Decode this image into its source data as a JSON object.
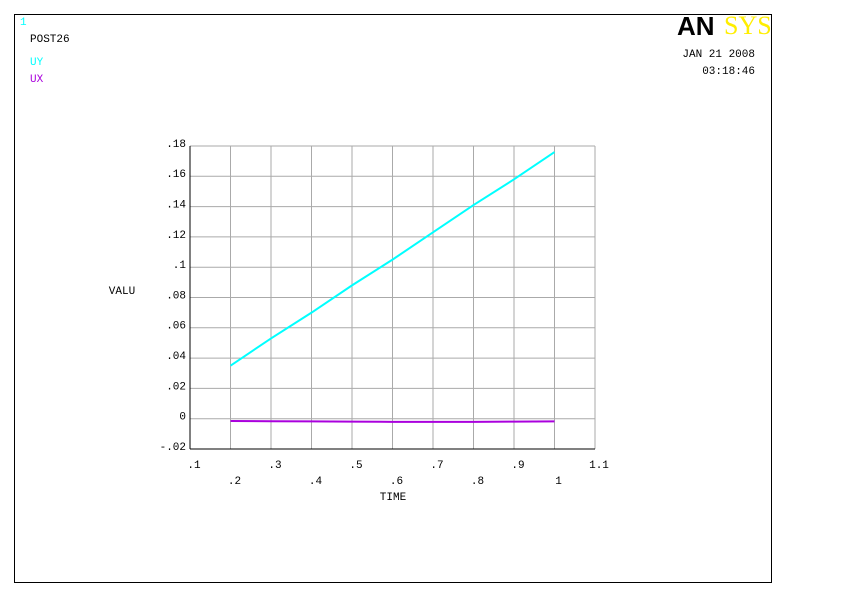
{
  "chart_data": {
    "type": "line",
    "window_number": "1",
    "title": "POST26",
    "logo": {
      "left": "AN",
      "right": "SYS"
    },
    "date": "JAN 21 2008",
    "time": "03:18:46",
    "x_label": "TIME",
    "y_label": "VALU",
    "x": [
      0.2,
      0.3,
      0.4,
      0.5,
      0.6,
      0.7,
      0.8,
      0.9,
      1.0
    ],
    "series": [
      {
        "name": "UY",
        "color": "#00ffff",
        "values": [
          0.035,
          0.053,
          0.07,
          0.088,
          0.105,
          0.123,
          0.141,
          0.158,
          0.176
        ]
      },
      {
        "name": "UX",
        "color": "#aa00dd",
        "values": [
          -0.0015,
          -0.0017,
          -0.0018,
          -0.0019,
          -0.0021,
          -0.0021,
          -0.0021,
          -0.0019,
          -0.0018
        ]
      }
    ],
    "xlim": [
      0.1,
      1.1
    ],
    "ylim": [
      -0.02,
      0.18
    ],
    "xticks": [
      {
        "value": 0.1,
        "label": ".1"
      },
      {
        "value": 0.2,
        "label": ".2"
      },
      {
        "value": 0.3,
        "label": ".3"
      },
      {
        "value": 0.4,
        "label": ".4"
      },
      {
        "value": 0.5,
        "label": ".5"
      },
      {
        "value": 0.6,
        "label": ".6"
      },
      {
        "value": 0.7,
        "label": ".7"
      },
      {
        "value": 0.8,
        "label": ".8"
      },
      {
        "value": 0.9,
        "label": ".9"
      },
      1,
      1.1
    ],
    "yticks": [
      {
        "value": -0.02,
        "label": "-.02"
      },
      0,
      {
        "value": 0.02,
        "label": ".02"
      },
      {
        "value": 0.04,
        "label": ".04"
      },
      {
        "value": 0.06,
        "label": ".06"
      },
      {
        "value": 0.08,
        "label": ".08"
      },
      {
        "value": 0.1,
        "label": ".1"
      },
      {
        "value": 0.12,
        "label": ".12"
      },
      {
        "value": 0.14,
        "label": ".14"
      },
      {
        "value": 0.16,
        "label": ".16"
      },
      {
        "value": 0.18,
        "label": ".18"
      }
    ],
    "grid": true
  }
}
